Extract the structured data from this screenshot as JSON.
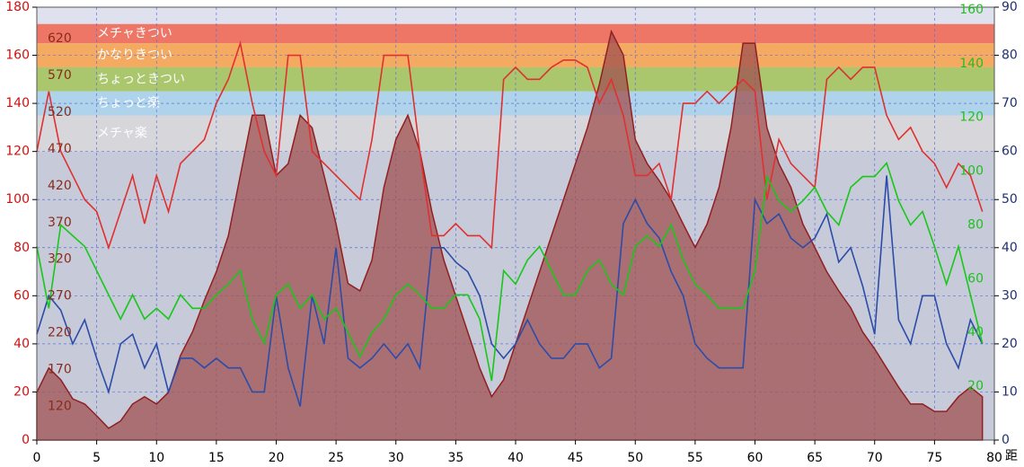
{
  "chart_data": {
    "type": "line",
    "x": [
      0,
      1,
      2,
      3,
      4,
      5,
      6,
      7,
      8,
      9,
      10,
      11,
      12,
      13,
      14,
      15,
      16,
      17,
      18,
      19,
      20,
      21,
      22,
      23,
      24,
      25,
      26,
      27,
      28,
      29,
      30,
      31,
      32,
      33,
      34,
      35,
      36,
      37,
      38,
      39,
      40,
      41,
      42,
      43,
      44,
      45,
      46,
      47,
      48,
      49,
      50,
      51,
      52,
      53,
      54,
      55,
      56,
      57,
      58,
      59,
      60,
      61,
      62,
      63,
      64,
      65,
      66,
      67,
      68,
      69,
      70,
      71,
      72,
      73,
      74,
      75,
      76,
      77,
      78,
      79
    ],
    "xlim": [
      0,
      80
    ],
    "xticks": [
      0,
      5,
      10,
      15,
      20,
      25,
      30,
      35,
      40,
      45,
      50,
      55,
      60,
      65,
      70,
      75,
      80
    ],
    "xlabel": "距",
    "ylim": [
      0,
      180
    ],
    "yticks": [
      0,
      20,
      40,
      60,
      80,
      100,
      120,
      140,
      160,
      180
    ],
    "y2lim": [
      0,
      90
    ],
    "y2ticks": [
      0,
      10,
      20,
      30,
      40,
      50,
      60,
      70,
      80,
      90
    ],
    "y3lim": [
      74,
      663
    ],
    "y3ticks": [
      120,
      170,
      220,
      270,
      320,
      370,
      420,
      470,
      520,
      570,
      620
    ],
    "y4lim": [
      0,
      161
    ],
    "y4ticks": [
      20,
      40,
      60,
      80,
      100,
      120,
      140,
      160
    ],
    "grid": true,
    "zones": [
      {
        "label": "メチャきつい",
        "from": 165,
        "to": 173,
        "color": "#ee6a58"
      },
      {
        "label": "かなりきつい",
        "from": 155,
        "to": 165,
        "color": "#f7a452"
      },
      {
        "label": "ちょっときつい",
        "from": 145,
        "to": 155,
        "color": "#a4c45e"
      },
      {
        "label": "ちょっと楽",
        "from": 135,
        "to": 145,
        "color": "#a9d2ea"
      },
      {
        "label": "メチャ楽",
        "from": 120,
        "to": 135,
        "color": "#d6d6d8"
      }
    ],
    "series": [
      {
        "kind": "area",
        "axis": "y3",
        "color": "#a05050",
        "values": [
          139,
          172,
          156,
          130,
          123,
          107,
          90,
          100,
          123,
          133,
          123,
          139,
          189,
          221,
          264,
          303,
          352,
          434,
          516,
          516,
          434,
          450,
          516,
          499,
          434,
          368,
          287,
          277,
          319,
          418,
          483,
          516,
          467,
          385,
          319,
          270,
          221,
          172,
          133,
          156,
          205,
          254,
          303,
          352,
          401,
          450,
          499,
          558,
          630,
          598,
          483,
          450,
          427,
          401,
          368,
          336,
          368,
          418,
          499,
          614,
          614,
          499,
          450,
          418,
          368,
          336,
          303,
          277,
          254,
          221,
          198,
          172,
          146,
          123,
          123,
          113,
          113,
          133,
          146,
          133
        ]
      },
      {
        "kind": "line",
        "axis": "y",
        "color": "#e03030",
        "values": [
          120,
          145,
          120,
          110,
          100,
          95,
          80,
          95,
          110,
          90,
          110,
          95,
          115,
          120,
          125,
          140,
          150,
          165,
          140,
          120,
          110,
          160,
          160,
          120,
          115,
          110,
          105,
          100,
          125,
          160,
          160,
          160,
          120,
          85,
          85,
          90,
          85,
          85,
          80,
          150,
          155,
          150,
          150,
          155,
          158,
          158,
          155,
          140,
          150,
          135,
          110,
          110,
          115,
          100,
          140,
          140,
          145,
          140,
          145,
          150,
          145,
          100,
          125,
          115,
          110,
          105,
          150,
          155,
          150,
          155,
          155,
          135,
          125,
          130,
          120,
          115,
          105,
          115,
          110,
          95
        ]
      },
      {
        "kind": "line",
        "axis": "y2",
        "color": "#2c4ca8",
        "values": [
          22,
          30,
          27,
          20,
          25,
          17,
          10,
          20,
          22,
          15,
          20,
          10,
          17,
          17,
          15,
          17,
          15,
          15,
          10,
          10,
          30,
          15,
          7,
          30,
          20,
          40,
          17,
          15,
          17,
          20,
          17,
          20,
          15,
          40,
          40,
          37,
          35,
          30,
          20,
          17,
          20,
          25,
          20,
          17,
          17,
          20,
          20,
          15,
          17,
          45,
          50,
          45,
          42,
          35,
          30,
          20,
          17,
          15,
          15,
          15,
          50,
          45,
          47,
          42,
          40,
          42,
          47,
          37,
          40,
          32,
          22,
          55,
          25,
          20,
          30,
          30,
          20,
          15,
          25,
          20
        ]
      },
      {
        "kind": "line",
        "axis": "y4",
        "color": "#18c818",
        "values": [
          72,
          49,
          80,
          76,
          72,
          63,
          54,
          45,
          54,
          45,
          49,
          45,
          54,
          49,
          49,
          54,
          58,
          63,
          45,
          36,
          54,
          58,
          49,
          54,
          45,
          49,
          40,
          31,
          40,
          45,
          54,
          58,
          54,
          49,
          49,
          54,
          54,
          45,
          22,
          63,
          58,
          67,
          72,
          63,
          54,
          54,
          63,
          67,
          58,
          54,
          72,
          76,
          72,
          80,
          67,
          58,
          54,
          49,
          49,
          49,
          63,
          98,
          89,
          85,
          89,
          94,
          85,
          80,
          94,
          98,
          98,
          103,
          89,
          80,
          85,
          72,
          58,
          72,
          54,
          36
        ]
      }
    ]
  }
}
